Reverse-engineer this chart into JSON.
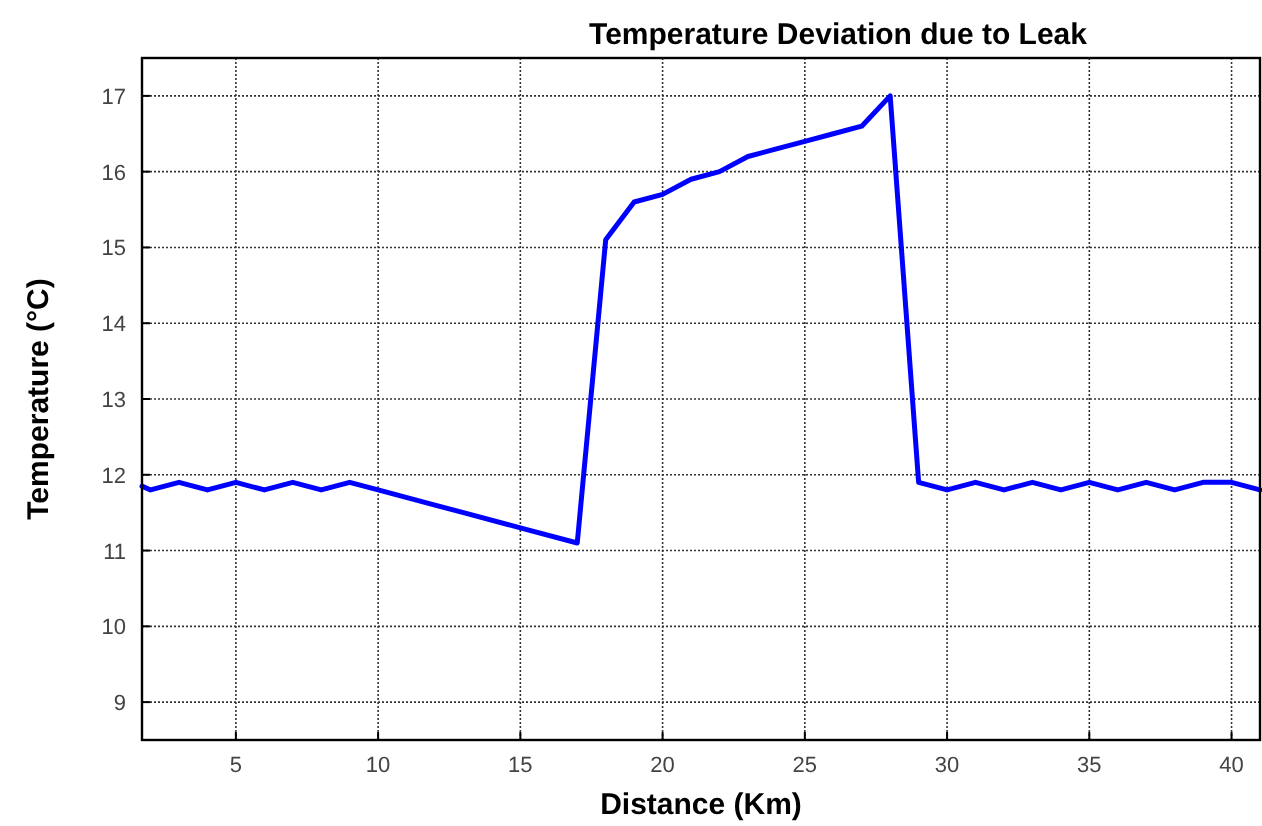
{
  "chart_data": {
    "type": "line",
    "title": "Temperature Deviation due to Leak",
    "xlabel": "Distance (Km)",
    "ylabel": "Temperature (°C)",
    "x": [
      1.7,
      2,
      3,
      4,
      5,
      6,
      7,
      8,
      9,
      10,
      12,
      13,
      15,
      17,
      18,
      19,
      20,
      21,
      22,
      23,
      24,
      25,
      26,
      27,
      28,
      29,
      30,
      31,
      32,
      33,
      34,
      35,
      36,
      37,
      38,
      39,
      40,
      41
    ],
    "series": [
      {
        "color": "#0000ff",
        "values": [
          11.85,
          11.8,
          11.9,
          11.8,
          11.9,
          11.8,
          11.9,
          11.8,
          11.9,
          11.8,
          11.6,
          11.5,
          11.3,
          11.1,
          15.1,
          15.6,
          15.7,
          15.9,
          16.0,
          16.2,
          16.3,
          16.4,
          16.5,
          16.6,
          17.0,
          11.9,
          11.8,
          11.9,
          11.8,
          11.9,
          11.8,
          11.9,
          11.8,
          11.9,
          11.8,
          11.9,
          11.9,
          11.8
        ]
      }
    ],
    "xlim": [
      1.7,
      41
    ],
    "xticks": [
      5,
      10,
      15,
      20,
      25,
      30,
      35,
      40
    ],
    "ylim": [
      8.5,
      17.5
    ],
    "yticks": [
      9,
      10,
      11,
      12,
      13,
      14,
      15,
      16,
      17
    ],
    "grid": true,
    "marker": "none",
    "line_style": "solid"
  }
}
